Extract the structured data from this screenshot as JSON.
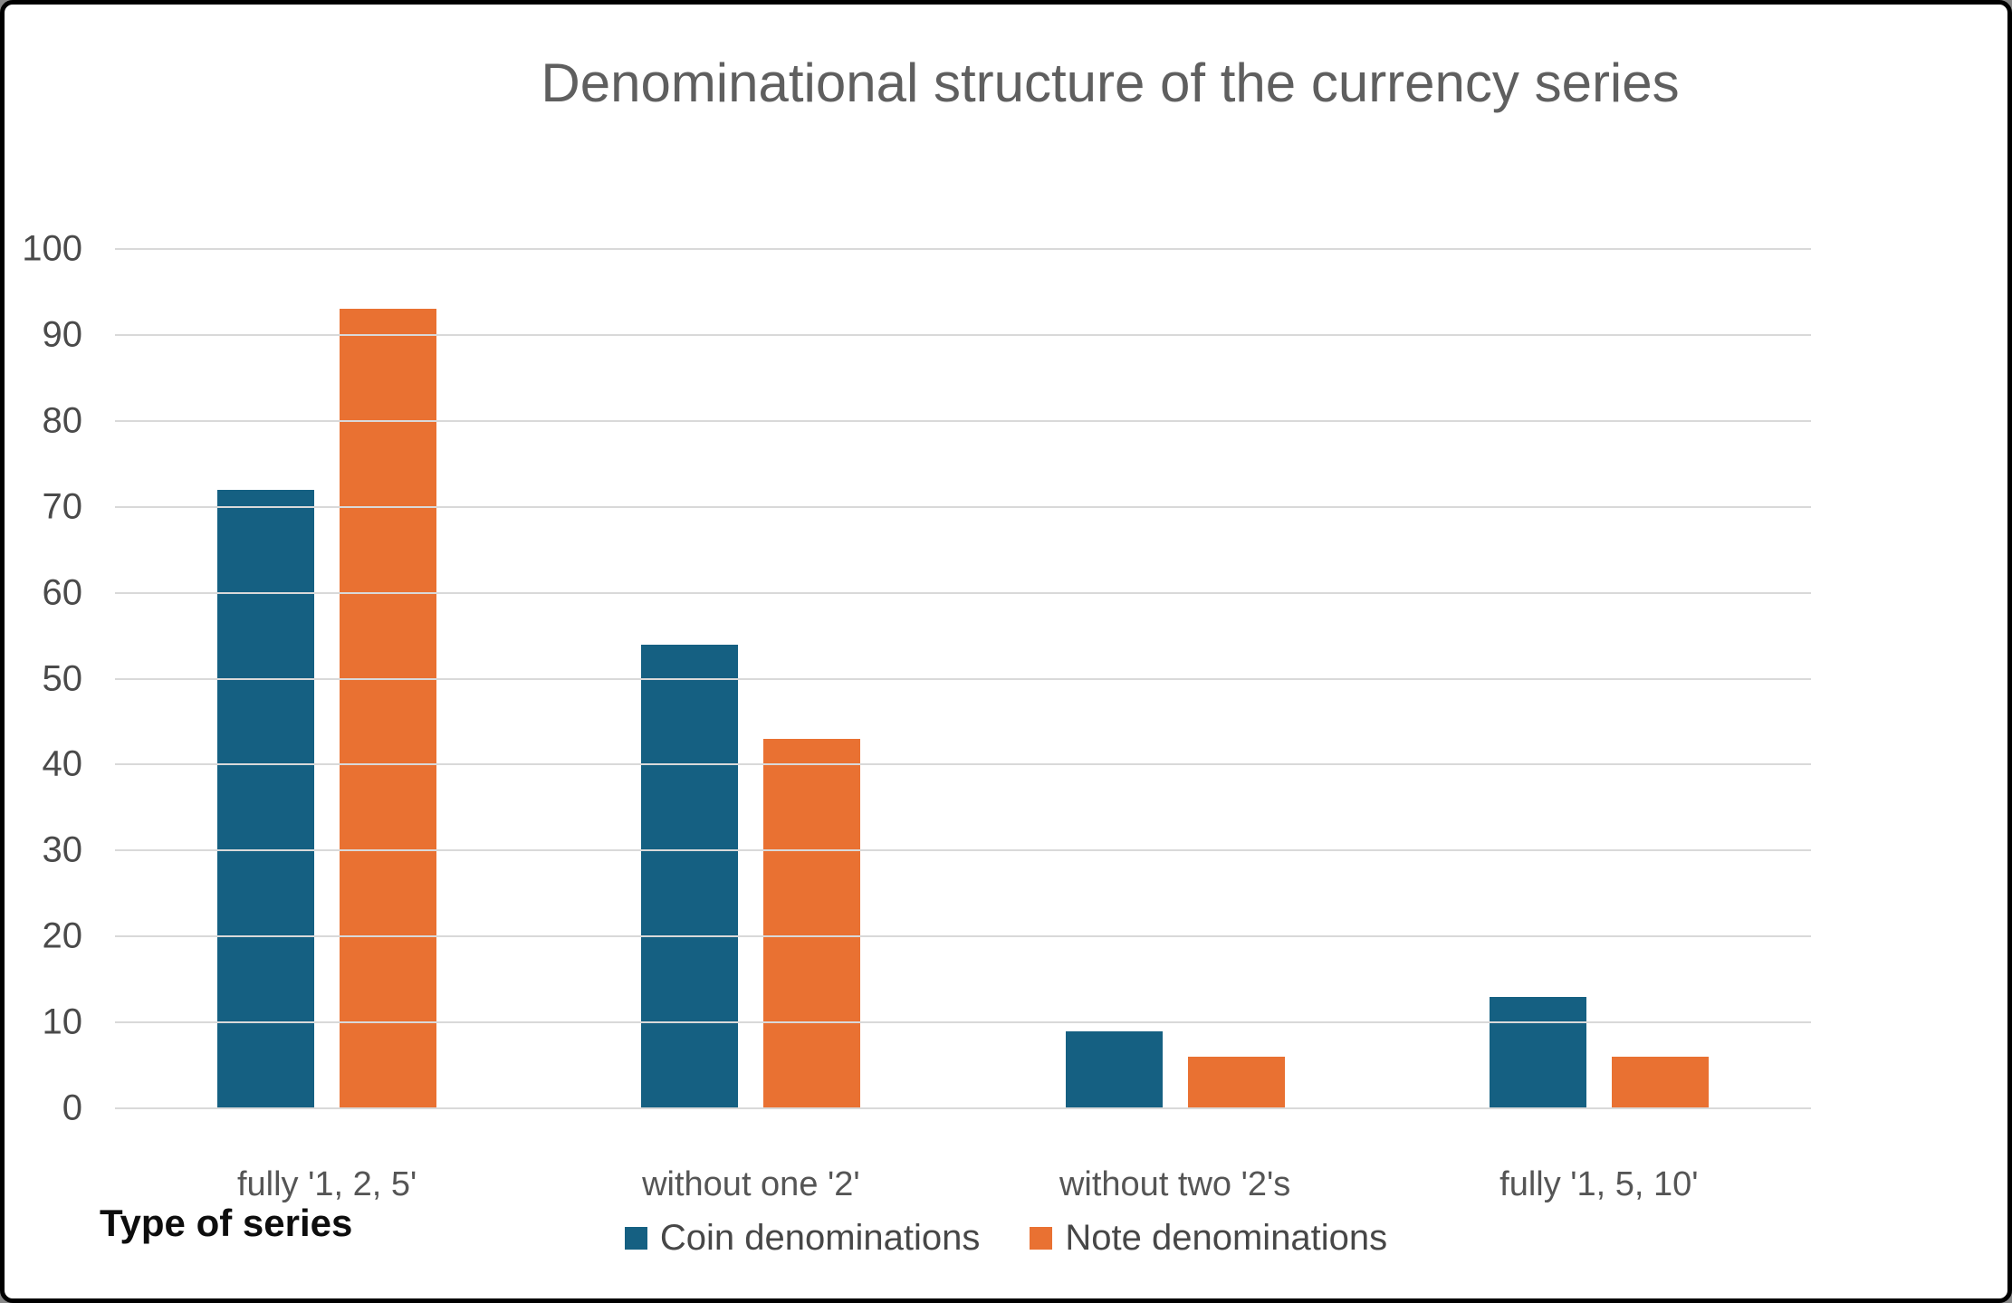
{
  "chart_data": {
    "type": "bar",
    "title": "Denominational structure of the currency series",
    "categories": [
      "fully '1, 2, 5'",
      "without one '2'",
      "without two '2's",
      "fully '1, 5, 10'"
    ],
    "series": [
      {
        "name": "Coin denominations",
        "color": "#156082",
        "values": [
          72,
          54,
          9,
          13
        ]
      },
      {
        "name": "Note denominations",
        "color": "#E97132",
        "values": [
          93,
          43,
          6,
          6
        ]
      }
    ],
    "xlabel": "Type of series",
    "ylabel": "",
    "ylim": [
      0,
      100
    ],
    "yticks": [
      0,
      10,
      20,
      30,
      40,
      50,
      60,
      70,
      80,
      90,
      100
    ],
    "grid": true,
    "legend_position": "bottom",
    "colors": {
      "gridline": "#D9D9D9",
      "title_text": "#5F5F5F",
      "axis_text": "#4A4A4A",
      "category_text": "#555555",
      "legend_text": "#474747",
      "axis_title_text": "#0D0D0D"
    }
  }
}
